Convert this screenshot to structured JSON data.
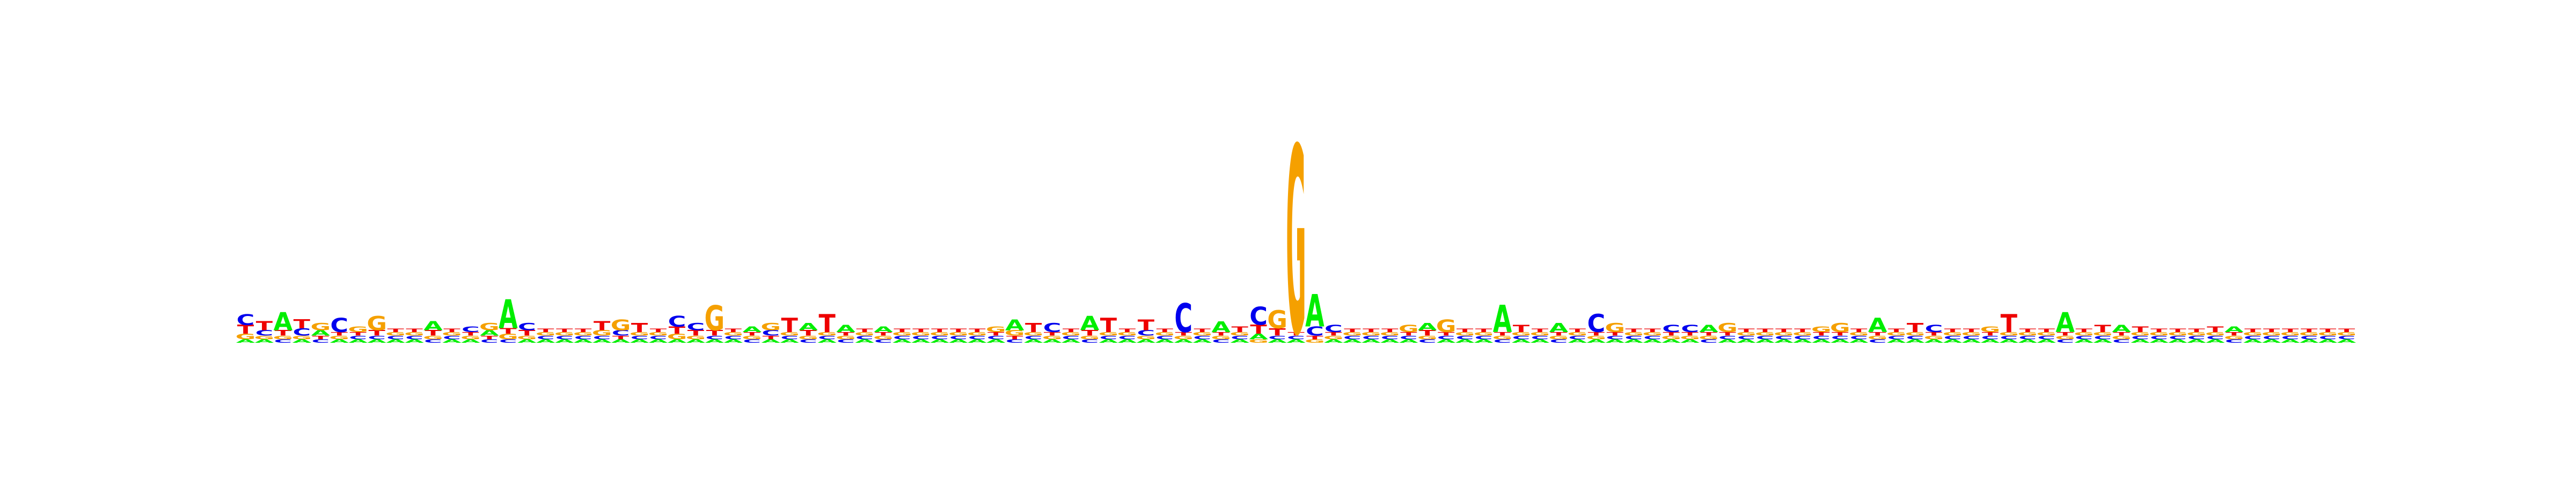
{
  "colors": {
    "A": "#00ee00",
    "C": "#0000ee",
    "G": "#f5a000",
    "T": "#ee0000"
  },
  "chart_data": {
    "type": "sequence-logo",
    "alphabet": [
      "A",
      "C",
      "G",
      "T"
    ],
    "ylim": [
      0,
      1.1
    ],
    "grid": false,
    "legend": "none",
    "positions": [
      {
        "A": 0.02,
        "C": 0.06,
        "G": 0.03,
        "T": 0.05
      },
      {
        "A": 0.02,
        "C": 0.03,
        "G": 0.02,
        "T": 0.05
      },
      {
        "A": 0.1,
        "C": 0.02,
        "G": 0.02,
        "T": 0.03
      },
      {
        "A": 0.02,
        "C": 0.04,
        "G": 0.02,
        "T": 0.05
      },
      {
        "A": 0.03,
        "C": 0.02,
        "G": 0.04,
        "T": 0.02
      },
      {
        "A": 0.02,
        "C": 0.08,
        "G": 0.02,
        "T": 0.02
      },
      {
        "A": 0.02,
        "C": 0.02,
        "G": 0.03,
        "T": 0.02
      },
      {
        "A": 0.02,
        "C": 0.02,
        "G": 0.08,
        "T": 0.03
      },
      {
        "A": 0.02,
        "C": 0.02,
        "G": 0.02,
        "T": 0.02
      },
      {
        "A": 0.02,
        "C": 0.02,
        "G": 0.02,
        "T": 0.02
      },
      {
        "A": 0.05,
        "C": 0.02,
        "G": 0.02,
        "T": 0.03
      },
      {
        "A": 0.02,
        "C": 0.02,
        "G": 0.02,
        "T": 0.02
      },
      {
        "A": 0.02,
        "C": 0.03,
        "G": 0.02,
        "T": 0.02
      },
      {
        "A": 0.03,
        "C": 0.02,
        "G": 0.04,
        "T": 0.02
      },
      {
        "A": 0.16,
        "C": 0.02,
        "G": 0.03,
        "T": 0.03
      },
      {
        "A": 0.02,
        "C": 0.04,
        "G": 0.02,
        "T": 0.03
      },
      {
        "A": 0.02,
        "C": 0.02,
        "G": 0.02,
        "T": 0.02
      },
      {
        "A": 0.02,
        "C": 0.02,
        "G": 0.02,
        "T": 0.02
      },
      {
        "A": 0.02,
        "C": 0.02,
        "G": 0.02,
        "T": 0.02
      },
      {
        "A": 0.02,
        "C": 0.02,
        "G": 0.03,
        "T": 0.05
      },
      {
        "A": 0.02,
        "C": 0.03,
        "G": 0.06,
        "T": 0.02
      },
      {
        "A": 0.02,
        "C": 0.02,
        "G": 0.02,
        "T": 0.05
      },
      {
        "A": 0.02,
        "C": 0.02,
        "G": 0.02,
        "T": 0.02
      },
      {
        "A": 0.02,
        "C": 0.06,
        "G": 0.03,
        "T": 0.04
      },
      {
        "A": 0.02,
        "C": 0.04,
        "G": 0.02,
        "T": 0.03
      },
      {
        "A": 0.02,
        "C": 0.02,
        "G": 0.14,
        "T": 0.03
      },
      {
        "A": 0.02,
        "C": 0.02,
        "G": 0.02,
        "T": 0.02
      },
      {
        "A": 0.03,
        "C": 0.02,
        "G": 0.02,
        "T": 0.02
      },
      {
        "A": 0.02,
        "C": 0.03,
        "G": 0.04,
        "T": 0.02
      },
      {
        "A": 0.02,
        "C": 0.02,
        "G": 0.02,
        "T": 0.08
      },
      {
        "A": 0.04,
        "C": 0.02,
        "G": 0.02,
        "T": 0.03
      },
      {
        "A": 0.02,
        "C": 0.02,
        "G": 0.02,
        "T": 0.1
      },
      {
        "A": 0.04,
        "C": 0.02,
        "G": 0.02,
        "T": 0.02
      },
      {
        "A": 0.02,
        "C": 0.02,
        "G": 0.02,
        "T": 0.02
      },
      {
        "A": 0.03,
        "C": 0.02,
        "G": 0.02,
        "T": 0.02
      },
      {
        "A": 0.02,
        "C": 0.02,
        "G": 0.02,
        "T": 0.02
      },
      {
        "A": 0.02,
        "C": 0.02,
        "G": 0.02,
        "T": 0.02
      },
      {
        "A": 0.02,
        "C": 0.02,
        "G": 0.02,
        "T": 0.02
      },
      {
        "A": 0.02,
        "C": 0.02,
        "G": 0.02,
        "T": 0.02
      },
      {
        "A": 0.02,
        "C": 0.02,
        "G": 0.02,
        "T": 0.02
      },
      {
        "A": 0.02,
        "C": 0.02,
        "G": 0.03,
        "T": 0.02
      },
      {
        "A": 0.06,
        "C": 0.02,
        "G": 0.03,
        "T": 0.02
      },
      {
        "A": 0.02,
        "C": 0.02,
        "G": 0.02,
        "T": 0.05
      },
      {
        "A": 0.02,
        "C": 0.05,
        "G": 0.02,
        "T": 0.02
      },
      {
        "A": 0.02,
        "C": 0.02,
        "G": 0.02,
        "T": 0.02
      },
      {
        "A": 0.08,
        "C": 0.02,
        "G": 0.02,
        "T": 0.03
      },
      {
        "A": 0.02,
        "C": 0.02,
        "G": 0.02,
        "T": 0.08
      },
      {
        "A": 0.02,
        "C": 0.02,
        "G": 0.02,
        "T": 0.02
      },
      {
        "A": 0.02,
        "C": 0.03,
        "G": 0.02,
        "T": 0.06
      },
      {
        "A": 0.02,
        "C": 0.02,
        "G": 0.02,
        "T": 0.02
      },
      {
        "A": 0.02,
        "C": 0.16,
        "G": 0.02,
        "T": 0.02
      },
      {
        "A": 0.02,
        "C": 0.02,
        "G": 0.02,
        "T": 0.02
      },
      {
        "A": 0.06,
        "C": 0.02,
        "G": 0.02,
        "T": 0.02
      },
      {
        "A": 0.02,
        "C": 0.02,
        "G": 0.02,
        "T": 0.03
      },
      {
        "A": 0.03,
        "C": 0.1,
        "G": 0.02,
        "T": 0.05
      },
      {
        "A": 0.02,
        "C": 0.02,
        "G": 0.1,
        "T": 0.04
      },
      {
        "A": 0.02,
        "C": 0.02,
        "G": 1.04,
        "T": 0.02
      },
      {
        "A": 0.18,
        "C": 0.05,
        "G": 0.02,
        "T": 0.02
      },
      {
        "A": 0.02,
        "C": 0.04,
        "G": 0.02,
        "T": 0.02
      },
      {
        "A": 0.02,
        "C": 0.02,
        "G": 0.02,
        "T": 0.02
      },
      {
        "A": 0.02,
        "C": 0.02,
        "G": 0.02,
        "T": 0.02
      },
      {
        "A": 0.02,
        "C": 0.02,
        "G": 0.02,
        "T": 0.02
      },
      {
        "A": 0.02,
        "C": 0.02,
        "G": 0.04,
        "T": 0.02
      },
      {
        "A": 0.04,
        "C": 0.02,
        "G": 0.02,
        "T": 0.03
      },
      {
        "A": 0.02,
        "C": 0.02,
        "G": 0.07,
        "T": 0.02
      },
      {
        "A": 0.02,
        "C": 0.02,
        "G": 0.02,
        "T": 0.02
      },
      {
        "A": 0.02,
        "C": 0.02,
        "G": 0.02,
        "T": 0.02
      },
      {
        "A": 0.15,
        "C": 0.02,
        "G": 0.02,
        "T": 0.02
      },
      {
        "A": 0.02,
        "C": 0.02,
        "G": 0.02,
        "T": 0.04
      },
      {
        "A": 0.02,
        "C": 0.02,
        "G": 0.02,
        "T": 0.02
      },
      {
        "A": 0.05,
        "C": 0.02,
        "G": 0.02,
        "T": 0.02
      },
      {
        "A": 0.02,
        "C": 0.02,
        "G": 0.02,
        "T": 0.02
      },
      {
        "A": 0.02,
        "C": 0.1,
        "G": 0.02,
        "T": 0.02
      },
      {
        "A": 0.02,
        "C": 0.02,
        "G": 0.05,
        "T": 0.02
      },
      {
        "A": 0.02,
        "C": 0.02,
        "G": 0.02,
        "T": 0.02
      },
      {
        "A": 0.02,
        "C": 0.02,
        "G": 0.02,
        "T": 0.02
      },
      {
        "A": 0.02,
        "C": 0.04,
        "G": 0.02,
        "T": 0.02
      },
      {
        "A": 0.02,
        "C": 0.04,
        "G": 0.02,
        "T": 0.02
      },
      {
        "A": 0.04,
        "C": 0.02,
        "G": 0.02,
        "T": 0.02
      },
      {
        "A": 0.02,
        "C": 0.02,
        "G": 0.05,
        "T": 0.02
      },
      {
        "A": 0.02,
        "C": 0.02,
        "G": 0.02,
        "T": 0.02
      },
      {
        "A": 0.02,
        "C": 0.02,
        "G": 0.02,
        "T": 0.02
      },
      {
        "A": 0.02,
        "C": 0.02,
        "G": 0.02,
        "T": 0.02
      },
      {
        "A": 0.02,
        "C": 0.02,
        "G": 0.02,
        "T": 0.02
      },
      {
        "A": 0.02,
        "C": 0.02,
        "G": 0.03,
        "T": 0.02
      },
      {
        "A": 0.02,
        "C": 0.02,
        "G": 0.05,
        "T": 0.02
      },
      {
        "A": 0.02,
        "C": 0.02,
        "G": 0.02,
        "T": 0.02
      },
      {
        "A": 0.08,
        "C": 0.02,
        "G": 0.02,
        "T": 0.02
      },
      {
        "A": 0.02,
        "C": 0.02,
        "G": 0.02,
        "T": 0.02
      },
      {
        "A": 0.02,
        "C": 0.02,
        "G": 0.02,
        "T": 0.05
      },
      {
        "A": 0.02,
        "C": 0.04,
        "G": 0.02,
        "T": 0.02
      },
      {
        "A": 0.02,
        "C": 0.02,
        "G": 0.02,
        "T": 0.02
      },
      {
        "A": 0.02,
        "C": 0.02,
        "G": 0.02,
        "T": 0.02
      },
      {
        "A": 0.02,
        "C": 0.02,
        "G": 0.03,
        "T": 0.02
      },
      {
        "A": 0.02,
        "C": 0.02,
        "G": 0.02,
        "T": 0.1
      },
      {
        "A": 0.02,
        "C": 0.02,
        "G": 0.02,
        "T": 0.02
      },
      {
        "A": 0.02,
        "C": 0.02,
        "G": 0.02,
        "T": 0.02
      },
      {
        "A": 0.11,
        "C": 0.02,
        "G": 0.02,
        "T": 0.02
      },
      {
        "A": 0.02,
        "C": 0.02,
        "G": 0.02,
        "T": 0.02
      },
      {
        "A": 0.02,
        "C": 0.02,
        "G": 0.02,
        "T": 0.04
      },
      {
        "A": 0.04,
        "C": 0.02,
        "G": 0.02,
        "T": 0.02
      },
      {
        "A": 0.02,
        "C": 0.02,
        "G": 0.02,
        "T": 0.03
      },
      {
        "A": 0.02,
        "C": 0.02,
        "G": 0.02,
        "T": 0.02
      },
      {
        "A": 0.02,
        "C": 0.02,
        "G": 0.02,
        "T": 0.02
      },
      {
        "A": 0.02,
        "C": 0.02,
        "G": 0.02,
        "T": 0.02
      },
      {
        "A": 0.02,
        "C": 0.02,
        "G": 0.02,
        "T": 0.03
      },
      {
        "A": 0.03,
        "C": 0.02,
        "G": 0.02,
        "T": 0.02
      },
      {
        "A": 0.02,
        "C": 0.02,
        "G": 0.02,
        "T": 0.02
      },
      {
        "A": 0.02,
        "C": 0.02,
        "G": 0.02,
        "T": 0.02
      },
      {
        "A": 0.02,
        "C": 0.02,
        "G": 0.02,
        "T": 0.02
      },
      {
        "A": 0.02,
        "C": 0.02,
        "G": 0.02,
        "T": 0.02
      },
      {
        "A": 0.02,
        "C": 0.02,
        "G": 0.02,
        "T": 0.02
      },
      {
        "A": 0.02,
        "C": 0.02,
        "G": 0.02,
        "T": 0.02
      }
    ]
  }
}
